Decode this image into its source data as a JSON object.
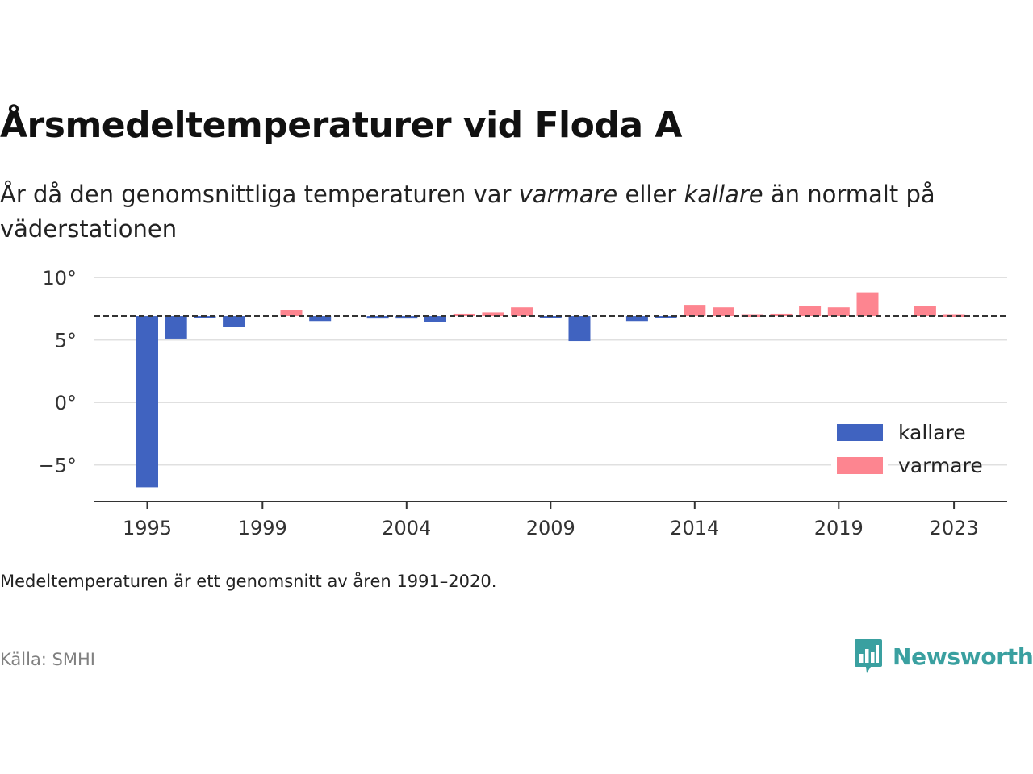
{
  "title": "Årsmedeltemperaturer vid Floda A",
  "subtitle": {
    "part1": "År då den genomsnittliga temperaturen var ",
    "warm_word": "varmare",
    "part2": " eller ",
    "cold_word": "kallare",
    "part3": " än normalt på väderstationen"
  },
  "note": "Medeltemperaturen är ett genomsnitt av åren 1991–2020.",
  "source": "Källa: SMHI",
  "brand": {
    "name": "Newsworthy",
    "icon": "newsworthy-logo-icon"
  },
  "colors": {
    "colder": "#4063c0",
    "warmer": "#fd8590",
    "grid": "#e0e0e0",
    "axis": "#333333"
  },
  "chart_data": {
    "type": "bar",
    "baseline": 6.9,
    "baseline_style": "dashed",
    "x": [
      1995,
      1996,
      1997,
      1998,
      1999,
      2000,
      2001,
      2002,
      2003,
      2004,
      2005,
      2006,
      2007,
      2008,
      2009,
      2010,
      2011,
      2012,
      2013,
      2014,
      2015,
      2016,
      2017,
      2018,
      2019,
      2020,
      2021,
      2022,
      2023
    ],
    "values": [
      -6.8,
      5.1,
      6.8,
      6.0,
      null,
      7.4,
      6.5,
      null,
      6.7,
      6.7,
      6.4,
      7.1,
      7.2,
      7.6,
      6.8,
      4.9,
      null,
      6.5,
      6.8,
      7.8,
      7.6,
      7.0,
      7.1,
      7.7,
      7.6,
      8.8,
      null,
      7.7,
      7.0
    ],
    "ylim": [
      -8,
      11
    ],
    "yticks": [
      10,
      5,
      0,
      -5
    ],
    "ytick_labels": [
      "10°",
      "5°",
      "0°",
      "−5°"
    ],
    "xticks": [
      1995,
      1999,
      2004,
      2009,
      2014,
      2019,
      2023
    ],
    "xtick_labels": [
      "1995",
      "1999",
      "2004",
      "2009",
      "2014",
      "2019",
      "2023"
    ],
    "grid": true,
    "legend": {
      "placement": "bottom-right",
      "entries": [
        {
          "label": "kallare",
          "color": "#4063c0"
        },
        {
          "label": "varmare",
          "color": "#fd8590"
        }
      ]
    }
  }
}
